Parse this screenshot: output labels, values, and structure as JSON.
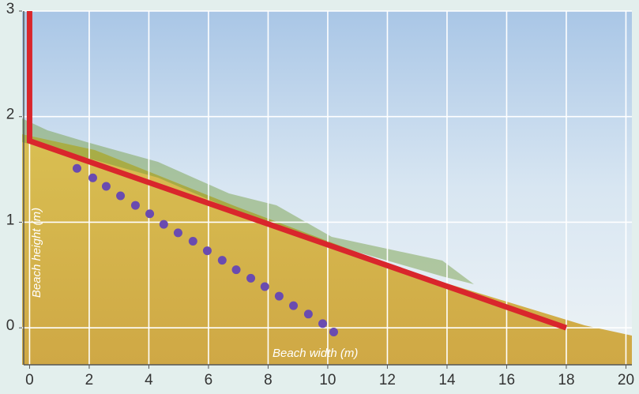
{
  "chart_data": {
    "type": "line",
    "x_label": "Beach width (m)",
    "y_label": "Beach height (m)",
    "xlim": [
      -0.25,
      20.2
    ],
    "ylim": [
      -0.35,
      3.0
    ],
    "xticks": [
      0,
      2,
      4,
      6,
      8,
      10,
      12,
      14,
      16,
      18,
      20
    ],
    "yticks": [
      0,
      1,
      2,
      3
    ],
    "grid": true,
    "series": [
      {
        "color": "#d9262c",
        "mode": "line",
        "x": [
          0,
          0,
          18
        ],
        "values": [
          3.0,
          1.77,
          0
        ]
      },
      {
        "color": "#6a4bb0",
        "mode": "markers",
        "x": [
          1.59,
          2.12,
          2.57,
          3.05,
          3.55,
          4.03,
          4.5,
          4.98,
          5.48,
          5.96,
          6.46,
          6.93,
          7.42,
          7.89,
          8.37,
          8.85,
          9.35,
          9.83,
          10.2
        ],
        "values": [
          1.51,
          1.42,
          1.34,
          1.25,
          1.16,
          1.08,
          0.98,
          0.9,
          0.82,
          0.73,
          0.64,
          0.55,
          0.47,
          0.39,
          0.3,
          0.21,
          0.13,
          0.04,
          -0.04
        ]
      }
    ]
  }
}
